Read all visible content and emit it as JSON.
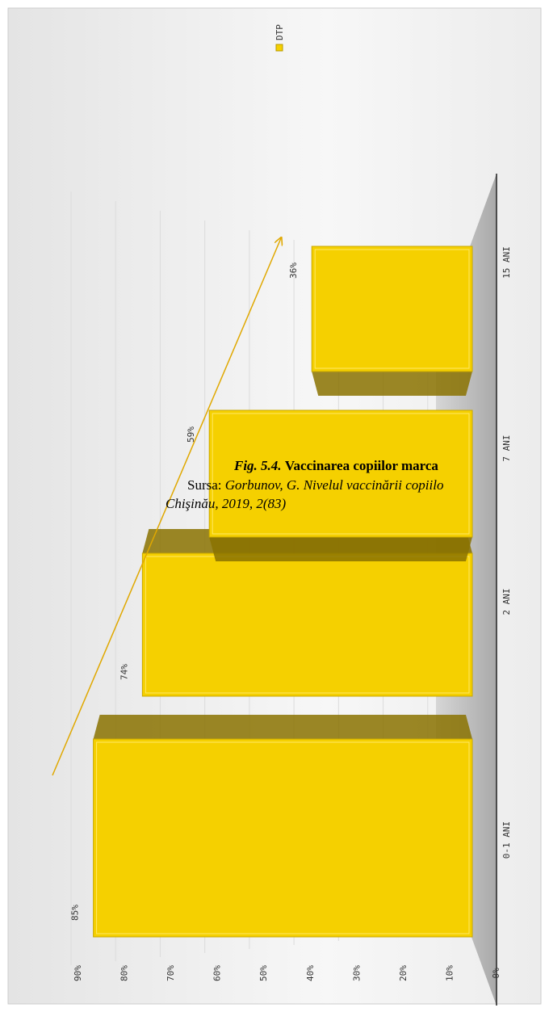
{
  "chart_data": {
    "type": "bar",
    "legend_position": "top-right",
    "grid": true,
    "categories": [
      "0-1 ANI",
      "2 ANI",
      "7 ANI",
      "15 ANI"
    ],
    "series": [
      {
        "name": "DTP",
        "color": "#f5d000",
        "values": [
          85,
          74,
          59,
          36
        ],
        "value_labels": [
          "85%",
          "74%",
          "59%",
          "36%"
        ]
      }
    ],
    "ylim": [
      0,
      90
    ],
    "yticks": [
      {
        "value": 0,
        "label": "0%"
      },
      {
        "value": 10,
        "label": "10%"
      },
      {
        "value": 20,
        "label": "20%"
      },
      {
        "value": 30,
        "label": "30%"
      },
      {
        "value": 40,
        "label": "40%"
      },
      {
        "value": 50,
        "label": "50%"
      },
      {
        "value": 60,
        "label": "60%"
      },
      {
        "value": 70,
        "label": "70%"
      },
      {
        "value": 80,
        "label": "80%"
      },
      {
        "value": 90,
        "label": "90%"
      }
    ]
  },
  "caption": {
    "fig": "Fig. 5.4.",
    "title": "Vaccinarea copiilor marca",
    "source_label": "Sursa: ",
    "source": "Gorbunov, G. Nivelul vaccinării copiilo",
    "source_2": "Chişinău, 2019, 2(83)"
  }
}
